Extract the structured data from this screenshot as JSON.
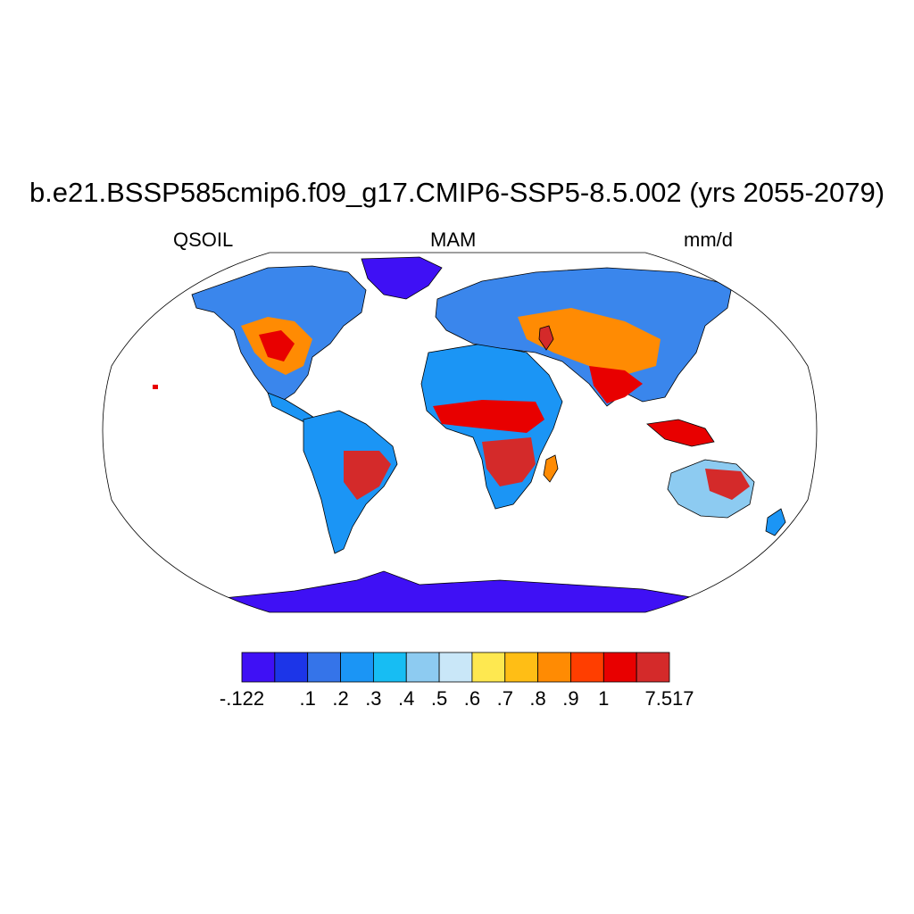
{
  "title": "b.e21.BSSP585cmip6.f09_g17.CMIP6-SSP5-8.5.002 (yrs 2055-2079)",
  "subtitle_left": "QSOIL",
  "subtitle_center": "MAM",
  "subtitle_right": "mm/d",
  "colorbar": {
    "colors": [
      "#3f10f5",
      "#1c35e8",
      "#3574e9",
      "#1b95f5",
      "#17bdf3",
      "#8dcbf1",
      "#c9e7f8",
      "#fee850",
      "#ffbe15",
      "#ff8b03",
      "#ff3e00",
      "#e80000",
      "#d42a2a"
    ],
    "labels": [
      "-.122",
      ".1",
      ".2",
      ".3",
      ".4",
      ".5",
      ".6",
      ".7",
      ".8",
      ".9",
      "1",
      "7.517"
    ]
  },
  "palette": {
    "ocean": "#ffffff",
    "outline": "#000000"
  }
}
